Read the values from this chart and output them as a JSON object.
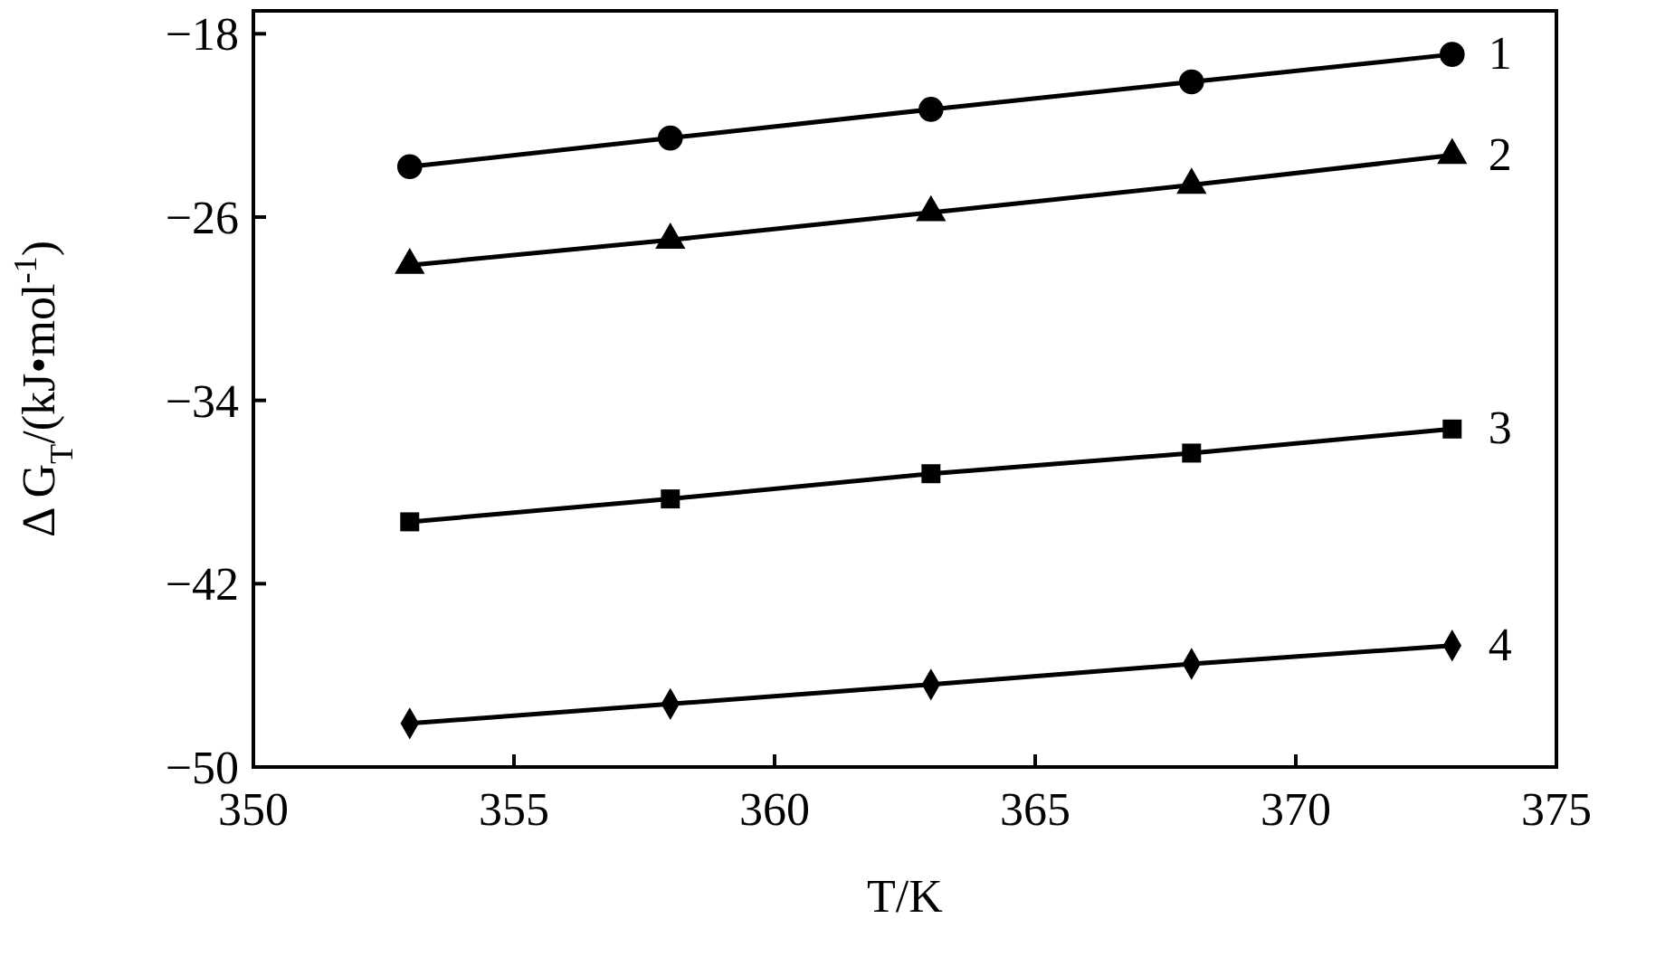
{
  "chart_data": {
    "type": "line",
    "xlabel": "T/K",
    "ylabel": "Δ G$_{T}$/(kJ•mol$^{-1}$)",
    "x": [
      353,
      358,
      363,
      368,
      373
    ],
    "xlim": [
      350,
      375
    ],
    "xticks": [
      350,
      355,
      360,
      365,
      370,
      375
    ],
    "ylim": [
      -50,
      -17
    ],
    "yticks": [
      -50,
      -42,
      -34,
      -26,
      -18
    ],
    "grid": false,
    "line_style": "solid",
    "series": [
      {
        "name": "1",
        "color": "#000000",
        "marker": "circle",
        "values": [
          -23.8,
          -22.55,
          -21.3,
          -20.1,
          -18.9
        ]
      },
      {
        "name": "2",
        "color": "#000000",
        "marker": "triangle",
        "values": [
          -28.1,
          -27.0,
          -25.8,
          -24.6,
          -23.3
        ]
      },
      {
        "name": "3",
        "color": "#000000",
        "marker": "square",
        "values": [
          -39.3,
          -38.3,
          -37.2,
          -36.3,
          -35.25
        ]
      },
      {
        "name": "4",
        "color": "#000000",
        "marker": "diamond",
        "values": [
          -48.1,
          -47.25,
          -46.4,
          -45.5,
          -44.7
        ]
      }
    ]
  }
}
